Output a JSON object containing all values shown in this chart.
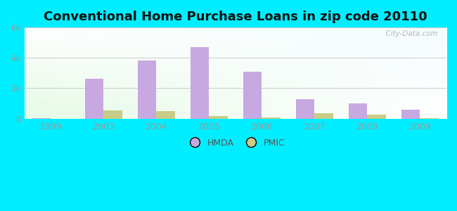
{
  "title": "Conventional Home Purchase Loans in zip code 20110",
  "categories": [
    "1999",
    "2003",
    "2004",
    "2005",
    "2006",
    "2007",
    "2008",
    "2009"
  ],
  "hmda_values": [
    50,
    2600,
    3800,
    4700,
    3100,
    1300,
    1000,
    600
  ],
  "pmic_values": [
    0,
    550,
    480,
    200,
    80,
    380,
    280,
    50
  ],
  "hmda_color": "#c8a8e0",
  "pmic_color": "#c8cc88",
  "ylim": [
    0,
    6000
  ],
  "yticks": [
    0,
    2000,
    4000,
    6000
  ],
  "ytick_labels": [
    "0",
    "2k",
    "4k",
    "6k"
  ],
  "bar_width": 0.35,
  "bg_outer": "#00eeff",
  "grid_color": "#cccccc",
  "title_fontsize": 13,
  "tick_fontsize": 9,
  "legend_fontsize": 9,
  "watermark": "  City-Data.com"
}
